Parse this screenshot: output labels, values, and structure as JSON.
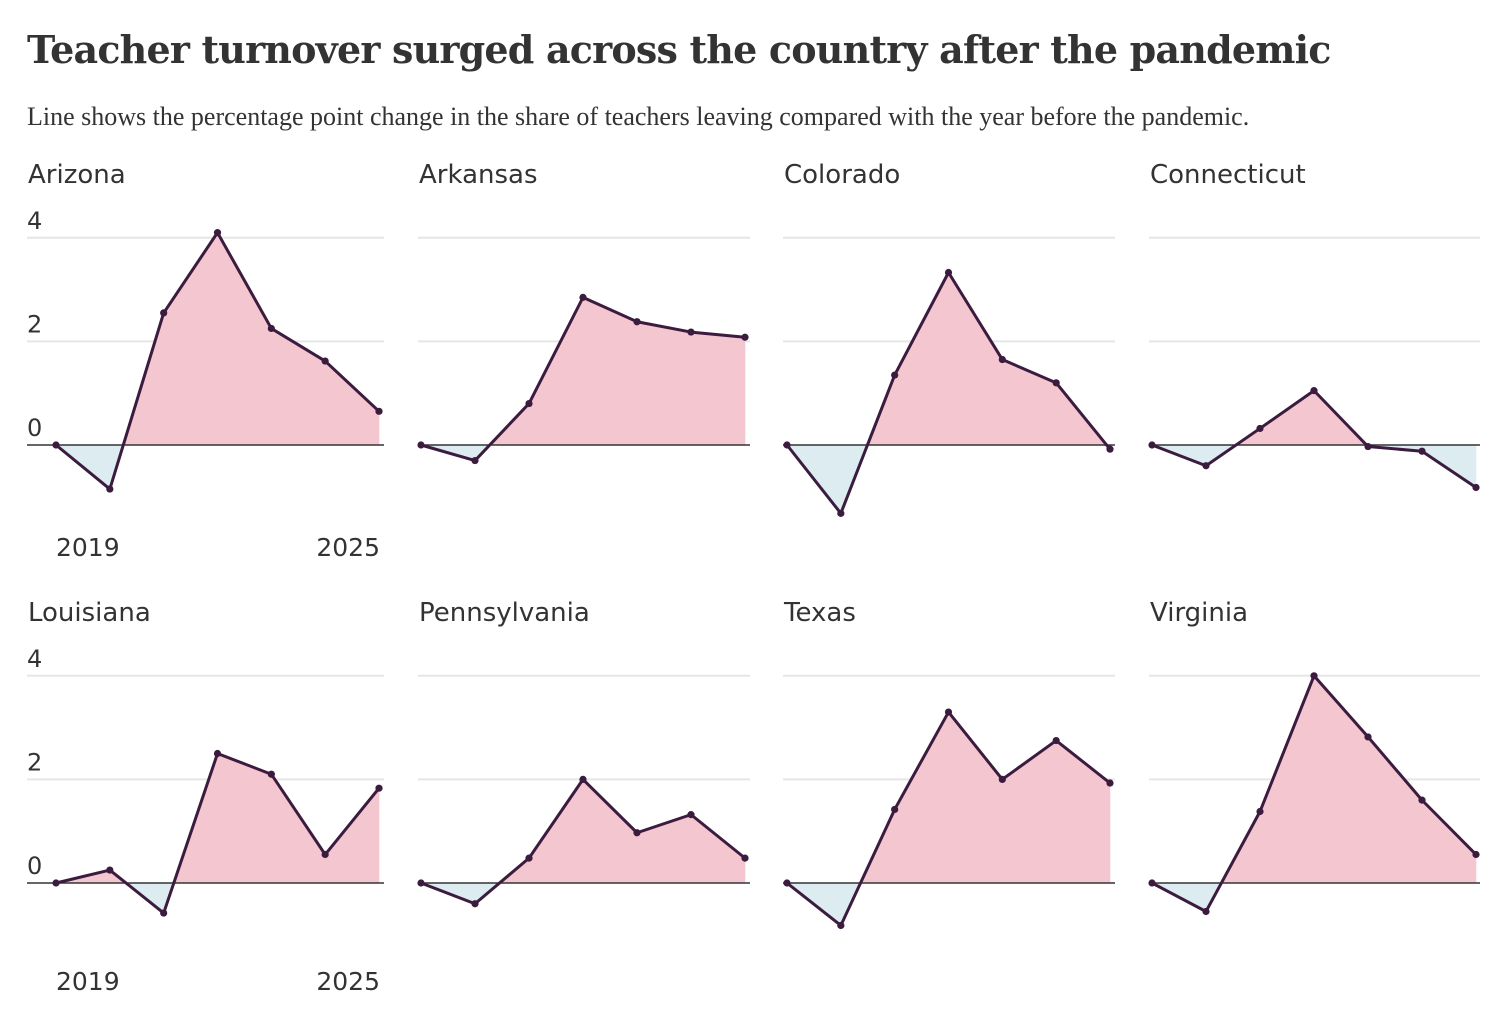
{
  "title": "Teacher turnover surged across the country after the pandemic",
  "subtitle": "Line shows the percentage point change in the share of teachers leaving compared with the year before the pandemic.",
  "colors": {
    "positive_fill": "#f4c6cf",
    "negative_fill": "#dcecf1",
    "line": "#3b1c3f",
    "gridline": "#e6e6e6",
    "baseline": "#333333",
    "text": "#333333"
  },
  "chart_data": [
    {
      "type": "area",
      "title": "Arizona",
      "x": [
        2019,
        2020,
        2021,
        2022,
        2023,
        2024,
        2025
      ],
      "values": [
        0,
        -0.85,
        2.55,
        4.1,
        2.25,
        1.62,
        0.65
      ],
      "ylim": [
        -2,
        4
      ],
      "yticks": [
        4,
        2,
        0
      ],
      "xticks": [
        "2019",
        "2025"
      ],
      "grid": true
    },
    {
      "type": "area",
      "title": "Arkansas",
      "x": [
        2019,
        2020,
        2021,
        2022,
        2023,
        2024,
        2025
      ],
      "values": [
        0,
        -0.3,
        0.8,
        2.85,
        2.38,
        2.18,
        2.08
      ],
      "ylim": [
        -2,
        4
      ],
      "grid": true
    },
    {
      "type": "area",
      "title": "Colorado",
      "x": [
        2019,
        2020,
        2021,
        2022,
        2023,
        2024,
        2025
      ],
      "values": [
        0,
        -1.32,
        1.35,
        3.33,
        1.65,
        1.2,
        -0.08
      ],
      "ylim": [
        -2,
        4
      ],
      "grid": true
    },
    {
      "type": "area",
      "title": "Connecticut",
      "x": [
        2019,
        2020,
        2021,
        2022,
        2023,
        2024,
        2025
      ],
      "values": [
        0,
        -0.4,
        0.32,
        1.05,
        -0.03,
        -0.12,
        -0.82
      ],
      "ylim": [
        -2,
        4
      ],
      "grid": true
    },
    {
      "type": "area",
      "title": "Louisiana",
      "x": [
        2019,
        2020,
        2021,
        2022,
        2023,
        2024,
        2025
      ],
      "values": [
        0,
        0.25,
        -0.58,
        2.5,
        2.1,
        0.55,
        1.83
      ],
      "ylim": [
        -2,
        4
      ],
      "yticks": [
        4,
        2,
        0
      ],
      "xticks": [
        "2019",
        "2025"
      ],
      "grid": true
    },
    {
      "type": "area",
      "title": "Pennsylvania",
      "x": [
        2019,
        2020,
        2021,
        2022,
        2023,
        2024,
        2025
      ],
      "values": [
        0,
        -0.4,
        0.48,
        2.0,
        0.97,
        1.32,
        0.48
      ],
      "ylim": [
        -2,
        4
      ],
      "grid": true
    },
    {
      "type": "area",
      "title": "Texas",
      "x": [
        2019,
        2020,
        2021,
        2022,
        2023,
        2024,
        2025
      ],
      "values": [
        0,
        -0.82,
        1.42,
        3.3,
        2.0,
        2.75,
        1.93
      ],
      "ylim": [
        -2,
        4
      ],
      "grid": true
    },
    {
      "type": "area",
      "title": "Virginia",
      "x": [
        2019,
        2020,
        2021,
        2022,
        2023,
        2024,
        2025
      ],
      "values": [
        0,
        -0.55,
        1.38,
        4.0,
        2.82,
        1.6,
        0.55
      ],
      "ylim": [
        -2,
        4
      ],
      "grid": true
    }
  ]
}
